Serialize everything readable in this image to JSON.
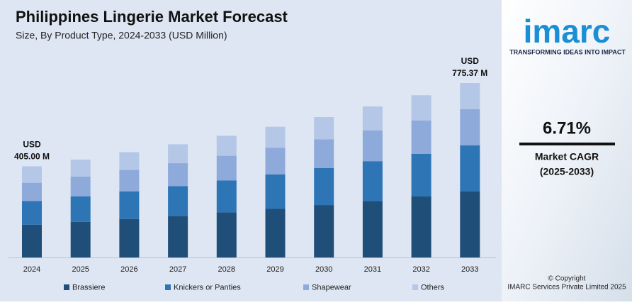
{
  "chart_data": {
    "type": "stacked_bar",
    "title": "Philippines Lingerie Market Forecast",
    "subtitle": "Size, By Product Type, 2024-2033 (USD Million)",
    "categories": [
      "2024",
      "2025",
      "2026",
      "2027",
      "2028",
      "2029",
      "2030",
      "2031",
      "2032",
      "2033"
    ],
    "series": [
      {
        "name": "Brassiere",
        "color": "#1f4e79",
        "values": [
          146,
          158,
          171,
          185,
          200,
          216,
          233,
          251,
          271,
          293.07
        ]
      },
      {
        "name": "Knickers or Panties",
        "color": "#2e75b6",
        "values": [
          105,
          114,
          123,
          132,
          142,
          153,
          165,
          177,
          190,
          204.87
        ]
      },
      {
        "name": "Shapewear",
        "color": "#8eaadb",
        "values": [
          81,
          88,
          95,
          102,
          110,
          118,
          127,
          137,
          148,
          160.74
        ]
      },
      {
        "name": "Others",
        "color": "#b4c7e7",
        "values": [
          73,
          75,
          79,
          84,
          89,
          94,
          99,
          106,
          112,
          116.69
        ]
      }
    ],
    "annotations": [
      [
        "USD",
        "405.00 M"
      ],
      [
        "USD",
        "775.37 M"
      ]
    ]
  },
  "sidebar": {
    "logo": "imarc",
    "tagline": "TRANSFORMING IDEAS INTO IMPACT",
    "cagr": "6.71%",
    "cagr_label": "Market CAGR",
    "cagr_period": "(2025-2033)",
    "copyright": "© Copyright",
    "company": "IMARC Services Private Limited 2025"
  }
}
